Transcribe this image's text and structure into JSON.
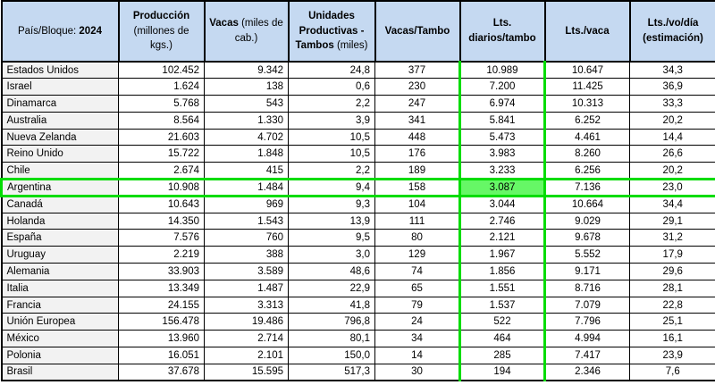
{
  "colors": {
    "header_bg": "#C5D9F1",
    "row_label_bg": "#F2F2F2",
    "highlight_border": "#00DC00",
    "highlight_fill": "#66F766"
  },
  "highlight": {
    "row_country": "Argentina",
    "column": "Lts. diarios/tambo",
    "value_index": 4
  },
  "table": {
    "header": {
      "col1_label": "País/Bloque:",
      "col1_year": "2024",
      "columns": [
        {
          "title": "Producción",
          "subtitle": "(millones de kgs.)"
        },
        {
          "title": "Vacas",
          "subtitle": "(miles de cab.)"
        },
        {
          "title": "Unidades Productivas - Tambos",
          "subtitle": "(miles)"
        },
        {
          "title": "Vacas/Tambo",
          "subtitle": ""
        },
        {
          "title": "Lts. diarios/tambo",
          "subtitle": ""
        },
        {
          "title": "Lts./vaca",
          "subtitle": ""
        },
        {
          "title": "Lts./vo/día (estimación)",
          "subtitle": ""
        }
      ]
    },
    "rows": [
      {
        "country": "Estados Unidos",
        "highlight": false,
        "values": [
          "102.452",
          "9.342",
          "24,8",
          "377",
          "10.989",
          "10.647",
          "34,3"
        ]
      },
      {
        "country": "Israel",
        "highlight": false,
        "values": [
          "1.624",
          "138",
          "0,6",
          "230",
          "7.200",
          "11.425",
          "36,9"
        ]
      },
      {
        "country": "Dinamarca",
        "highlight": false,
        "values": [
          "5.768",
          "543",
          "2,2",
          "247",
          "6.974",
          "10.313",
          "33,3"
        ]
      },
      {
        "country": "Australia",
        "highlight": false,
        "values": [
          "8.564",
          "1.330",
          "3,9",
          "341",
          "5.841",
          "6.252",
          "20,2"
        ]
      },
      {
        "country": "Nueva Zelanda",
        "highlight": false,
        "values": [
          "21.603",
          "4.702",
          "10,5",
          "448",
          "5.473",
          "4.461",
          "14,4"
        ]
      },
      {
        "country": "Reino Unido",
        "highlight": false,
        "values": [
          "15.722",
          "1.848",
          "10,5",
          "176",
          "3.983",
          "8.260",
          "26,6"
        ]
      },
      {
        "country": "Chile",
        "highlight": false,
        "values": [
          "2.674",
          "415",
          "2,2",
          "189",
          "3.233",
          "6.256",
          "20,2"
        ]
      },
      {
        "country": "Argentina",
        "highlight": true,
        "values": [
          "10.908",
          "1.484",
          "9,4",
          "158",
          "3.087",
          "7.136",
          "23,0"
        ]
      },
      {
        "country": "Canadá",
        "highlight": false,
        "values": [
          "10.643",
          "969",
          "9,3",
          "104",
          "3.044",
          "10.664",
          "34,4"
        ]
      },
      {
        "country": "Holanda",
        "highlight": false,
        "values": [
          "14.350",
          "1.543",
          "13,9",
          "111",
          "2.746",
          "9.029",
          "29,1"
        ]
      },
      {
        "country": "España",
        "highlight": false,
        "values": [
          "7.576",
          "760",
          "9,5",
          "80",
          "2.121",
          "9.678",
          "31,2"
        ]
      },
      {
        "country": "Uruguay",
        "highlight": false,
        "values": [
          "2.219",
          "388",
          "3,0",
          "129",
          "1.967",
          "5.552",
          "17,9"
        ]
      },
      {
        "country": "Alemania",
        "highlight": false,
        "values": [
          "33.903",
          "3.589",
          "48,6",
          "74",
          "1.856",
          "9.171",
          "29,6"
        ]
      },
      {
        "country": "Italia",
        "highlight": false,
        "values": [
          "13.349",
          "1.487",
          "22,9",
          "65",
          "1.551",
          "8.716",
          "28,1"
        ]
      },
      {
        "country": "Francia",
        "highlight": false,
        "values": [
          "24.155",
          "3.313",
          "41,8",
          "79",
          "1.537",
          "7.079",
          "22,8"
        ]
      },
      {
        "country": "Unión Europea",
        "highlight": false,
        "values": [
          "156.478",
          "19.486",
          "796,8",
          "24",
          "522",
          "7.796",
          "25,1"
        ]
      },
      {
        "country": "México",
        "highlight": false,
        "values": [
          "13.960",
          "2.714",
          "80,1",
          "34",
          "464",
          "4.994",
          "16,1"
        ]
      },
      {
        "country": "Polonia",
        "highlight": false,
        "values": [
          "16.051",
          "2.101",
          "150,0",
          "14",
          "285",
          "7.417",
          "23,9"
        ]
      },
      {
        "country": "Brasil",
        "highlight": false,
        "values": [
          "37.678",
          "15.595",
          "517,3",
          "30",
          "194",
          "2.346",
          "7,6"
        ]
      }
    ]
  }
}
